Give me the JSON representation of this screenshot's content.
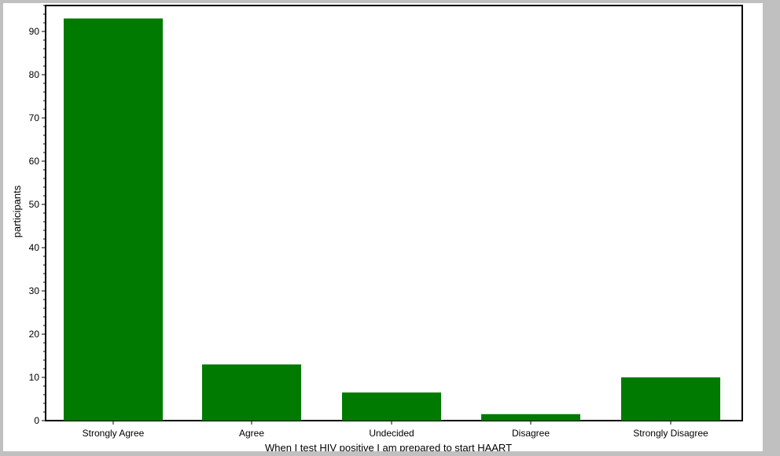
{
  "chart_data": {
    "type": "bar",
    "title": "",
    "xlabel": "When I test HIV positive I am prepared to start HAART",
    "ylabel": "participants",
    "categories": [
      "Strongly Agree",
      "Agree",
      "Undecided",
      "Disagree",
      "Strongly Disagree"
    ],
    "values": [
      93,
      13,
      6.5,
      1.5,
      10
    ],
    "ylim": [
      0,
      96
    ],
    "yticks": [
      0,
      10,
      20,
      30,
      40,
      50,
      60,
      70,
      80,
      90
    ],
    "grid": false,
    "legend": "none"
  },
  "colors": {
    "bar": "#007a00",
    "background": "#ffffff",
    "frame": "#c0c0c0",
    "axis": "#000000"
  }
}
